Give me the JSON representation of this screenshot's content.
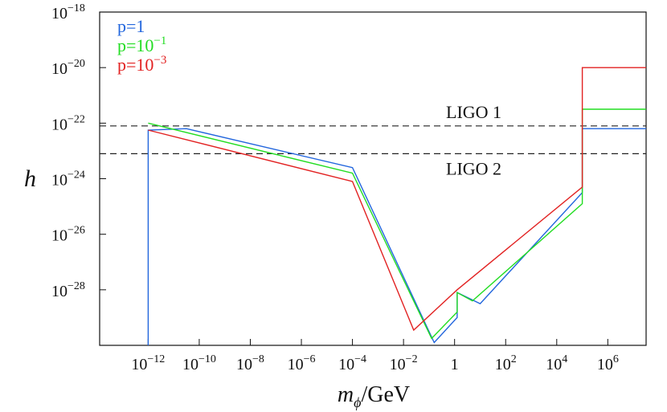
{
  "chart_data": {
    "type": "line",
    "xlabel": {
      "italic": "m",
      "sub": "ϕ",
      "rest": "/GeV"
    },
    "ylabel": "h",
    "x_scale": "log",
    "y_scale": "log",
    "xlim_log10": [
      -13.9,
      7.5
    ],
    "ylim_log10": [
      -30,
      -18
    ],
    "x_ticks": [
      {
        "exp": -12,
        "base": "10",
        "sup": "−12"
      },
      {
        "exp": -10,
        "base": "10",
        "sup": "−10"
      },
      {
        "exp": -8,
        "base": "10",
        "sup": "−8"
      },
      {
        "exp": -6,
        "base": "10",
        "sup": "−6"
      },
      {
        "exp": -4,
        "base": "10",
        "sup": "−4"
      },
      {
        "exp": -2,
        "base": "10",
        "sup": "−2"
      },
      {
        "exp": 0,
        "base": "1",
        "sup": ""
      },
      {
        "exp": 2,
        "base": "10",
        "sup": "2"
      },
      {
        "exp": 4,
        "base": "10",
        "sup": "4"
      },
      {
        "exp": 6,
        "base": "10",
        "sup": "6"
      }
    ],
    "y_ticks": [
      {
        "exp": -18,
        "base": "10",
        "sup": "−18"
      },
      {
        "exp": -20,
        "base": "10",
        "sup": "−20"
      },
      {
        "exp": -22,
        "base": "10",
        "sup": "−22"
      },
      {
        "exp": -24,
        "base": "10",
        "sup": "−24"
      },
      {
        "exp": -26,
        "base": "10",
        "sup": "−26"
      },
      {
        "exp": -28,
        "base": "10",
        "sup": "−28"
      }
    ],
    "reference_lines": [
      {
        "label": "LIGO 1",
        "log10_y": -22.1,
        "label_position": "above"
      },
      {
        "label": "LIGO 2",
        "log10_y": -23.1,
        "label_position": "below"
      }
    ],
    "legend_placement": "top-left",
    "series": [
      {
        "name_base": "p=1",
        "name_sup": "",
        "color": "#2266dd",
        "points_log10": [
          [
            -12,
            -30
          ],
          [
            -12,
            -22.25
          ],
          [
            -10.5,
            -22.2
          ],
          [
            -4,
            -23.6
          ],
          [
            -0.8,
            -29.9
          ],
          [
            0.1,
            -29.0
          ],
          [
            0.1,
            -28.1
          ],
          [
            1.0,
            -28.5
          ],
          [
            5.0,
            -24.5
          ],
          [
            5.0,
            -23.7
          ],
          [
            5.0,
            -22.2
          ],
          [
            7.5,
            -22.2
          ]
        ]
      },
      {
        "name_base": "p=10",
        "name_sup": "−1",
        "color": "#22dd22",
        "points_log10": [
          [
            -12,
            -22.0
          ],
          [
            -4,
            -23.8
          ],
          [
            -0.9,
            -29.75
          ],
          [
            0.1,
            -28.8
          ],
          [
            0.1,
            -28.1
          ],
          [
            0.7,
            -28.4
          ],
          [
            5.0,
            -24.9
          ],
          [
            5.0,
            -23.5
          ],
          [
            5.0,
            -21.5
          ],
          [
            7.5,
            -21.5
          ]
        ]
      },
      {
        "name_base": "p=10",
        "name_sup": "−3",
        "color": "#e22222",
        "points_log10": [
          [
            -12,
            -22.25
          ],
          [
            -4,
            -24.1
          ],
          [
            -1.6,
            -29.45
          ],
          [
            0.1,
            -28.0
          ],
          [
            5.0,
            -24.3
          ],
          [
            5.0,
            -23.8
          ],
          [
            5.0,
            -20.0
          ],
          [
            7.5,
            -20.0
          ]
        ]
      }
    ]
  }
}
